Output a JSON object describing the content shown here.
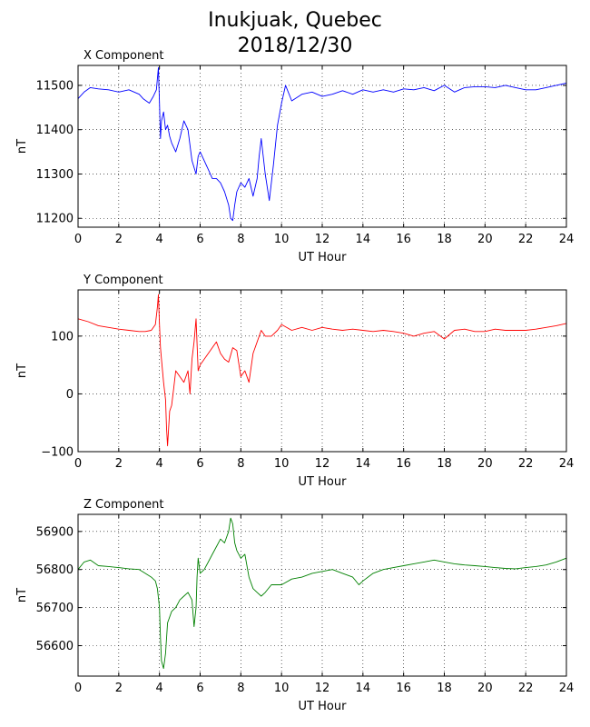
{
  "figure": {
    "title_line1": "Inukjuak, Quebec",
    "title_line2": "2018/12/30"
  },
  "chart_data": [
    {
      "type": "line",
      "title": "X Component",
      "xlabel": "UT Hour",
      "ylabel": "nT",
      "xlim": [
        0,
        24
      ],
      "ylim": [
        11180,
        11545
      ],
      "xticks": [
        0,
        2,
        4,
        6,
        8,
        10,
        12,
        14,
        16,
        18,
        20,
        22,
        24
      ],
      "yticks": [
        11200,
        11300,
        11400,
        11500
      ],
      "grid": true,
      "color": "#0000ff",
      "series": [
        {
          "x": [
            0,
            0.3,
            0.6,
            1,
            1.5,
            2,
            2.5,
            3,
            3.2,
            3.5,
            3.7,
            3.85,
            3.95,
            4.0,
            4.05,
            4.1,
            4.2,
            4.3,
            4.4,
            4.5,
            4.6,
            4.8,
            5.0,
            5.2,
            5.4,
            5.6,
            5.8,
            5.9,
            6.0,
            6.2,
            6.4,
            6.6,
            6.8,
            7.0,
            7.2,
            7.4,
            7.5,
            7.6,
            7.7,
            7.8,
            8.0,
            8.2,
            8.4,
            8.6,
            8.8,
            8.9,
            9.0,
            9.2,
            9.4,
            9.6,
            9.8,
            10.0,
            10.2,
            10.5,
            11,
            11.5,
            12,
            12.5,
            13,
            13.5,
            14,
            14.5,
            15,
            15.5,
            16,
            16.5,
            17,
            17.5,
            18,
            18.5,
            19,
            19.5,
            20,
            20.5,
            21,
            21.5,
            22,
            22.5,
            23,
            23.5,
            24
          ],
          "y": [
            11470,
            11485,
            11495,
            11492,
            11490,
            11485,
            11490,
            11480,
            11470,
            11460,
            11475,
            11490,
            11540,
            11460,
            11380,
            11420,
            11440,
            11400,
            11410,
            11385,
            11370,
            11350,
            11380,
            11420,
            11400,
            11330,
            11300,
            11340,
            11350,
            11330,
            11310,
            11290,
            11290,
            11280,
            11260,
            11230,
            11200,
            11195,
            11230,
            11260,
            11280,
            11270,
            11290,
            11250,
            11290,
            11340,
            11380,
            11300,
            11240,
            11320,
            11410,
            11460,
            11500,
            11465,
            11480,
            11485,
            11475,
            11480,
            11488,
            11480,
            11490,
            11485,
            11490,
            11485,
            11492,
            11490,
            11495,
            11488,
            11500,
            11485,
            11495,
            11497,
            11497,
            11495,
            11500,
            11495,
            11490,
            11490,
            11495,
            11500,
            11505
          ]
        }
      ]
    },
    {
      "type": "line",
      "title": "Y Component",
      "xlabel": "UT Hour",
      "ylabel": "nT",
      "xlim": [
        0,
        24
      ],
      "ylim": [
        -100,
        180
      ],
      "xticks": [
        0,
        2,
        4,
        6,
        8,
        10,
        12,
        14,
        16,
        18,
        20,
        22,
        24
      ],
      "yticks": [
        -100,
        0,
        100
      ],
      "grid": true,
      "color": "#ff0000",
      "series": [
        {
          "x": [
            0,
            0.5,
            1,
            1.5,
            2,
            2.5,
            3,
            3.3,
            3.6,
            3.8,
            3.9,
            3.95,
            4.0,
            4.05,
            4.1,
            4.2,
            4.3,
            4.35,
            4.4,
            4.5,
            4.6,
            4.7,
            4.8,
            5.0,
            5.2,
            5.4,
            5.5,
            5.6,
            5.7,
            5.8,
            5.9,
            6.0,
            6.2,
            6.4,
            6.6,
            6.8,
            7.0,
            7.2,
            7.4,
            7.6,
            7.8,
            8.0,
            8.2,
            8.4,
            8.6,
            8.8,
            9.0,
            9.2,
            9.5,
            9.8,
            10.0,
            10.5,
            11,
            11.5,
            12,
            12.5,
            13,
            13.5,
            14,
            14.5,
            15,
            15.5,
            16,
            16.5,
            17,
            17.5,
            18,
            18.5,
            19,
            19.5,
            20,
            20.5,
            21,
            21.5,
            22,
            22.5,
            23,
            23.5,
            24
          ],
          "y": [
            130,
            125,
            118,
            115,
            112,
            110,
            108,
            108,
            110,
            120,
            150,
            172,
            120,
            80,
            60,
            20,
            -10,
            -60,
            -90,
            -30,
            -20,
            10,
            40,
            30,
            20,
            40,
            0,
            60,
            90,
            130,
            40,
            50,
            60,
            70,
            80,
            90,
            70,
            60,
            55,
            80,
            75,
            30,
            40,
            20,
            70,
            90,
            110,
            100,
            100,
            110,
            120,
            110,
            115,
            110,
            115,
            112,
            110,
            112,
            110,
            108,
            110,
            108,
            105,
            100,
            105,
            108,
            95,
            110,
            112,
            108,
            108,
            112,
            110,
            110,
            110,
            112,
            115,
            118,
            122
          ]
        }
      ]
    },
    {
      "type": "line",
      "title": "Z Component",
      "xlabel": "UT Hour",
      "ylabel": "nT",
      "xlim": [
        0,
        24
      ],
      "ylim": [
        56520,
        56945
      ],
      "xticks": [
        0,
        2,
        4,
        6,
        8,
        10,
        12,
        14,
        16,
        18,
        20,
        22,
        24
      ],
      "yticks": [
        56600,
        56700,
        56800,
        56900
      ],
      "grid": true,
      "color": "#008000",
      "series": [
        {
          "x": [
            0,
            0.3,
            0.6,
            1,
            1.5,
            2,
            2.5,
            3,
            3.3,
            3.6,
            3.8,
            3.9,
            4.0,
            4.05,
            4.1,
            4.2,
            4.3,
            4.4,
            4.6,
            4.8,
            5.0,
            5.2,
            5.4,
            5.6,
            5.7,
            5.8,
            5.85,
            5.9,
            6.0,
            6.2,
            6.4,
            6.6,
            6.8,
            7.0,
            7.2,
            7.4,
            7.5,
            7.6,
            7.7,
            7.8,
            8.0,
            8.2,
            8.4,
            8.6,
            8.8,
            9.0,
            9.2,
            9.5,
            10.0,
            10.5,
            11,
            11.5,
            12,
            12.5,
            13,
            13.5,
            13.8,
            14,
            14.5,
            15,
            15.5,
            16,
            16.5,
            17,
            17.5,
            18,
            18.5,
            19,
            19.5,
            20,
            20.5,
            21,
            21.5,
            22,
            22.5,
            23,
            23.5,
            24
          ],
          "y": [
            56800,
            56820,
            56825,
            56810,
            56808,
            56805,
            56802,
            56800,
            56790,
            56780,
            56770,
            56750,
            56700,
            56620,
            56560,
            56540,
            56580,
            56660,
            56690,
            56700,
            56720,
            56730,
            56740,
            56720,
            56650,
            56700,
            56780,
            56830,
            56790,
            56800,
            56820,
            56840,
            56860,
            56880,
            56870,
            56900,
            56935,
            56920,
            56870,
            56850,
            56830,
            56840,
            56780,
            56750,
            56740,
            56730,
            56740,
            56760,
            56760,
            56775,
            56780,
            56790,
            56795,
            56800,
            56790,
            56780,
            56760,
            56770,
            56790,
            56800,
            56805,
            56810,
            56815,
            56820,
            56825,
            56820,
            56815,
            56812,
            56810,
            56808,
            56805,
            56803,
            56802,
            56805,
            56808,
            56812,
            56820,
            56830
          ]
        }
      ]
    }
  ]
}
